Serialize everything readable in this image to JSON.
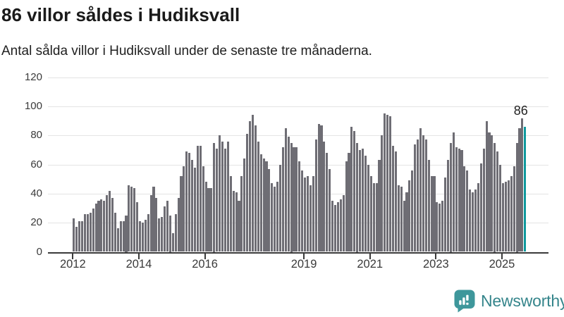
{
  "header": {
    "title": "86 villor såldes i Hudiksvall",
    "subtitle": "Antal sålda villor i Hudiksvall under de senaste tre månaderna."
  },
  "chart_data": {
    "type": "bar",
    "title": "86 villor såldes i Hudiksvall",
    "unit": "sålda villor (rullande tre månader)",
    "start_month": "2012-01",
    "end_month": "2025-09",
    "values": [
      23,
      17,
      21,
      21,
      26,
      26,
      27,
      30,
      33,
      35,
      36,
      35,
      39,
      42,
      37,
      27,
      16,
      21,
      21,
      25,
      46,
      45,
      44,
      34,
      21,
      20,
      22,
      26,
      39,
      45,
      37,
      23,
      24,
      31,
      35,
      25,
      13,
      26,
      37,
      52,
      59,
      69,
      68,
      63,
      58,
      73,
      73,
      59,
      48,
      44,
      44,
      75,
      71,
      80,
      76,
      71,
      76,
      52,
      42,
      41,
      35,
      52,
      64,
      81,
      90,
      94,
      87,
      76,
      67,
      64,
      62,
      57,
      47,
      45,
      48,
      60,
      72,
      85,
      79,
      75,
      72,
      72,
      62,
      56,
      51,
      52,
      46,
      52,
      77,
      88,
      87,
      76,
      68,
      57,
      35,
      32,
      34,
      36,
      39,
      62,
      68,
      86,
      83,
      75,
      70,
      71,
      66,
      60,
      52,
      47,
      47,
      63,
      80,
      95,
      94,
      93,
      73,
      69,
      46,
      45,
      35,
      41,
      49,
      56,
      74,
      77,
      85,
      80,
      77,
      63,
      52,
      52,
      34,
      33,
      35,
      51,
      63,
      75,
      82,
      72,
      71,
      70,
      59,
      56,
      43,
      41,
      43,
      47,
      61,
      71,
      90,
      82,
      80,
      75,
      69,
      60,
      47,
      48,
      49,
      52,
      59,
      75,
      85,
      92,
      86
    ],
    "highlight": {
      "index": 164,
      "value": 86,
      "label": "86",
      "color": "#0e999d"
    },
    "bar_color": "#6e6d74",
    "y_ticks": [
      0,
      20,
      40,
      60,
      80,
      100,
      120
    ],
    "ylim": [
      0,
      120
    ],
    "x_tick_labels": [
      "2012",
      "2014",
      "2016",
      "2019",
      "2021",
      "2023",
      "2025"
    ],
    "base_year": 2012,
    "grid": "horizontal",
    "legend": "none"
  },
  "footer": {
    "brand": "Newsworthy"
  },
  "colors": {
    "bar": "#6e6d74",
    "highlight": "#0e999d",
    "gridline": "#e4e4e4",
    "axis": "#3a3a3a",
    "axis_text": "#3a3a3a",
    "title_text": "#1a1a1a",
    "logo_teal": "#3e979b",
    "logo_text": "#35858b"
  }
}
